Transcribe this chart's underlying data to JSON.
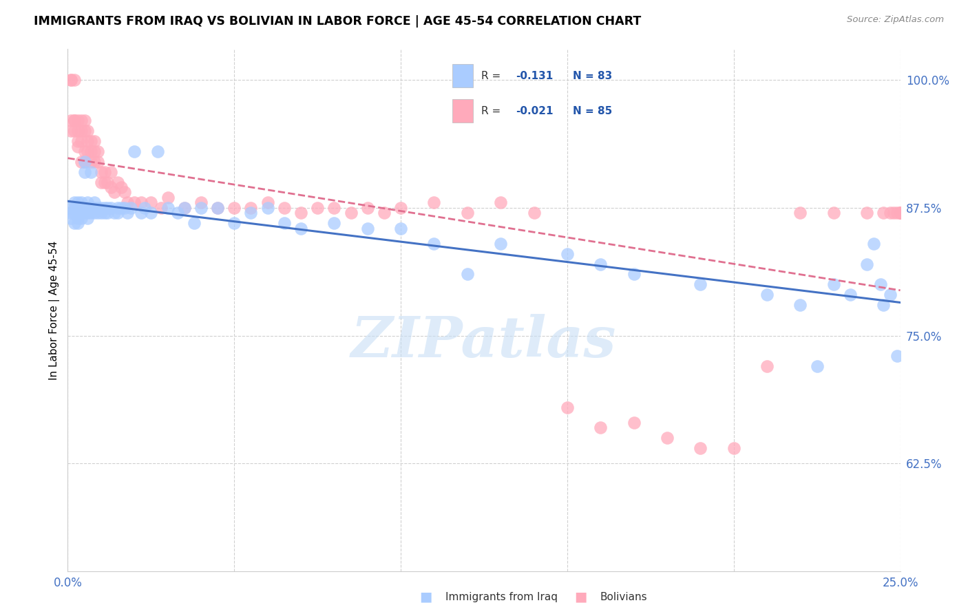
{
  "title": "IMMIGRANTS FROM IRAQ VS BOLIVIAN IN LABOR FORCE | AGE 45-54 CORRELATION CHART",
  "source": "Source: ZipAtlas.com",
  "ylabel": "In Labor Force | Age 45-54",
  "xlim": [
    0.0,
    0.25
  ],
  "ylim": [
    0.52,
    1.03
  ],
  "yticks": [
    0.625,
    0.75,
    0.875,
    1.0
  ],
  "ytick_labels": [
    "62.5%",
    "75.0%",
    "87.5%",
    "100.0%"
  ],
  "xtick_positions": [
    0.0,
    0.05,
    0.1,
    0.15,
    0.2,
    0.25
  ],
  "xtick_labels": [
    "0.0%",
    "",
    "",
    "",
    "",
    "25.0%"
  ],
  "legend_r_iraq": "-0.131",
  "legend_n_iraq": "83",
  "legend_r_bolivian": "-0.021",
  "legend_n_bolivian": "85",
  "iraq_color": "#aaccff",
  "bolivian_color": "#ffaabb",
  "iraq_line_color": "#4472c4",
  "bolivian_line_color": "#e07090",
  "iraq_x": [
    0.001,
    0.001,
    0.001,
    0.002,
    0.002,
    0.002,
    0.002,
    0.003,
    0.003,
    0.003,
    0.003,
    0.003,
    0.004,
    0.004,
    0.004,
    0.004,
    0.005,
    0.005,
    0.005,
    0.005,
    0.006,
    0.006,
    0.006,
    0.006,
    0.007,
    0.007,
    0.007,
    0.008,
    0.008,
    0.008,
    0.009,
    0.009,
    0.01,
    0.01,
    0.011,
    0.011,
    0.012,
    0.012,
    0.013,
    0.014,
    0.015,
    0.015,
    0.016,
    0.017,
    0.018,
    0.019,
    0.02,
    0.022,
    0.023,
    0.025,
    0.027,
    0.03,
    0.033,
    0.035,
    0.038,
    0.04,
    0.045,
    0.05,
    0.055,
    0.06,
    0.065,
    0.07,
    0.08,
    0.09,
    0.1,
    0.11,
    0.12,
    0.13,
    0.15,
    0.16,
    0.17,
    0.19,
    0.21,
    0.22,
    0.225,
    0.23,
    0.235,
    0.24,
    0.242,
    0.244,
    0.245,
    0.247,
    0.249
  ],
  "iraq_y": [
    0.875,
    0.87,
    0.865,
    0.875,
    0.87,
    0.88,
    0.86,
    0.875,
    0.87,
    0.88,
    0.865,
    0.86,
    0.88,
    0.875,
    0.87,
    0.865,
    0.92,
    0.91,
    0.875,
    0.87,
    0.88,
    0.875,
    0.87,
    0.865,
    0.91,
    0.875,
    0.87,
    0.88,
    0.875,
    0.87,
    0.875,
    0.87,
    0.875,
    0.87,
    0.875,
    0.87,
    0.875,
    0.87,
    0.875,
    0.87,
    0.875,
    0.87,
    0.875,
    0.875,
    0.87,
    0.875,
    0.93,
    0.87,
    0.875,
    0.87,
    0.93,
    0.875,
    0.87,
    0.875,
    0.86,
    0.875,
    0.875,
    0.86,
    0.87,
    0.875,
    0.86,
    0.855,
    0.86,
    0.855,
    0.855,
    0.84,
    0.81,
    0.84,
    0.83,
    0.82,
    0.81,
    0.8,
    0.79,
    0.78,
    0.72,
    0.8,
    0.79,
    0.82,
    0.84,
    0.8,
    0.78,
    0.79,
    0.73
  ],
  "bolivian_x": [
    0.001,
    0.001,
    0.001,
    0.001,
    0.002,
    0.002,
    0.002,
    0.002,
    0.003,
    0.003,
    0.003,
    0.003,
    0.004,
    0.004,
    0.004,
    0.004,
    0.005,
    0.005,
    0.005,
    0.005,
    0.006,
    0.006,
    0.006,
    0.007,
    0.007,
    0.007,
    0.008,
    0.008,
    0.008,
    0.009,
    0.009,
    0.01,
    0.01,
    0.011,
    0.011,
    0.012,
    0.013,
    0.013,
    0.014,
    0.015,
    0.016,
    0.017,
    0.018,
    0.02,
    0.022,
    0.025,
    0.028,
    0.03,
    0.035,
    0.04,
    0.045,
    0.05,
    0.055,
    0.06,
    0.065,
    0.07,
    0.075,
    0.08,
    0.085,
    0.09,
    0.095,
    0.1,
    0.11,
    0.12,
    0.13,
    0.14,
    0.15,
    0.16,
    0.17,
    0.18,
    0.19,
    0.2,
    0.21,
    0.22,
    0.23,
    0.24,
    0.245,
    0.247,
    0.248,
    0.249,
    0.25,
    0.25,
    0.25,
    0.25,
    0.25
  ],
  "bolivian_y": [
    1.0,
    1.0,
    0.96,
    0.95,
    1.0,
    0.96,
    0.96,
    0.95,
    0.96,
    0.95,
    0.94,
    0.935,
    0.96,
    0.95,
    0.94,
    0.92,
    0.96,
    0.95,
    0.93,
    0.92,
    0.95,
    0.94,
    0.93,
    0.94,
    0.93,
    0.92,
    0.94,
    0.93,
    0.92,
    0.93,
    0.92,
    0.91,
    0.9,
    0.91,
    0.9,
    0.9,
    0.91,
    0.895,
    0.89,
    0.9,
    0.895,
    0.89,
    0.88,
    0.88,
    0.88,
    0.88,
    0.875,
    0.885,
    0.875,
    0.88,
    0.875,
    0.875,
    0.875,
    0.88,
    0.875,
    0.87,
    0.875,
    0.875,
    0.87,
    0.875,
    0.87,
    0.875,
    0.88,
    0.87,
    0.88,
    0.87,
    0.68,
    0.66,
    0.665,
    0.65,
    0.64,
    0.64,
    0.72,
    0.87,
    0.87,
    0.87,
    0.87,
    0.87,
    0.87,
    0.87,
    0.87,
    0.87,
    0.87,
    0.87,
    0.87
  ]
}
